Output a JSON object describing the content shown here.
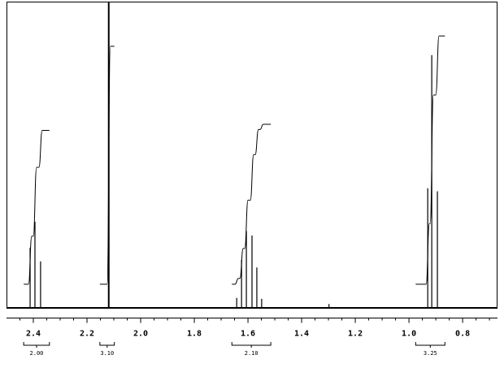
{
  "chart_data": {
    "type": "nmr",
    "xlim": [
      2.5,
      0.67
    ],
    "ylim": [
      0,
      100
    ],
    "xticks": [
      2.4,
      2.2,
      {
        "value": 2,
        "label": "2.0"
      },
      1.8,
      1.6,
      1.4,
      1.2,
      {
        "value": 1,
        "label": "1.0"
      },
      0.8
    ],
    "xminorticks": [
      2.45,
      2.35,
      2.3,
      2.25,
      2.15,
      2.1,
      2.05,
      1.95,
      1.9,
      1.85,
      1.75,
      1.7,
      1.65,
      1.55,
      1.5,
      1.45,
      1.35,
      1.3,
      1.25,
      1.15,
      1.1,
      1.05,
      0.95,
      0.9,
      0.85,
      0.75,
      0.7
    ],
    "color": "#000000",
    "peaks": {
      "x": [
        2.412,
        2.394,
        2.373,
        2.119,
        1.642,
        1.624,
        1.606,
        1.585,
        1.567,
        1.549,
        1.298,
        0.93,
        0.915,
        0.894
      ],
      "values": [
        19.5,
        28,
        15,
        100,
        3,
        15.5,
        25,
        23.5,
        13,
        2.7,
        1,
        39,
        82.7,
        38
      ]
    },
    "integrals": [
      {
        "label": "2.00",
        "from": 2.436,
        "to": 2.34,
        "start": 7.5,
        "end": 58
      },
      {
        "label": "3.10",
        "from": 2.152,
        "to": 2.098,
        "start": 7.5,
        "end": 85.6
      },
      {
        "label": "2.10",
        "from": 1.66,
        "to": 1.515,
        "start": 7.5,
        "end": 60
      },
      {
        "label": "3.25",
        "from": 0.975,
        "to": 0.866,
        "start": 7.5,
        "end": 89
      }
    ]
  }
}
